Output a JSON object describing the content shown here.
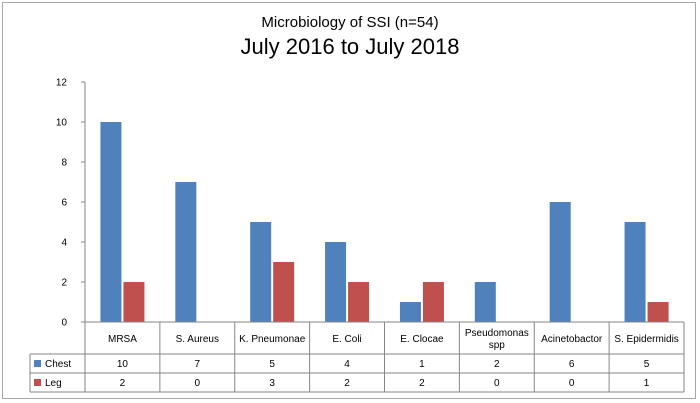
{
  "chart_data": {
    "type": "bar",
    "title": "Microbiology of SSI (n=54)",
    "subtitle": "July 2016 to July 2018",
    "categories": [
      "MRSA",
      "S. Aureus",
      "K. Pneumonae",
      "E. Coli",
      "E. Clocae",
      "Pseudomonas spp",
      "Acinetobactor",
      "S. Epidermidis"
    ],
    "category_lines": [
      [
        "MRSA"
      ],
      [
        "S. Aureus"
      ],
      [
        "K. Pneumonae"
      ],
      [
        "E. Coli"
      ],
      [
        "E. Clocae"
      ],
      [
        "Pseudomonas",
        "spp"
      ],
      [
        "Acinetobactor"
      ],
      [
        "S. Epidermidis"
      ]
    ],
    "series": [
      {
        "name": "Chest",
        "color": "#4f81bd",
        "values": [
          10,
          7,
          5,
          4,
          1,
          2,
          6,
          5
        ]
      },
      {
        "name": "Leg",
        "color": "#c0504d",
        "values": [
          2,
          0,
          3,
          2,
          2,
          0,
          0,
          1
        ]
      }
    ],
    "ylim": [
      0,
      12
    ],
    "yticks": [
      0,
      2,
      4,
      6,
      8,
      10,
      12
    ],
    "grid": false,
    "legend": "data-table"
  }
}
